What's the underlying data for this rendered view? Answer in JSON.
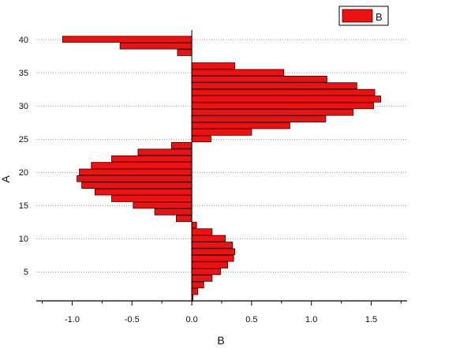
{
  "chart_data": {
    "type": "bar",
    "orientation": "horizontal",
    "xlabel": "B",
    "ylabel": "A",
    "xlim": [
      -1.3,
      1.8
    ],
    "ylim": [
      0.6,
      41.4
    ],
    "x_ticks": [
      -1.0,
      -0.5,
      0.0,
      0.5,
      1.0,
      1.5
    ],
    "x_tick_labels": [
      "-1.0",
      "-0.5",
      "0.0",
      "0.5",
      "1.0",
      "1.5"
    ],
    "y_ticks": [
      5,
      10,
      15,
      20,
      25,
      30,
      35,
      40
    ],
    "y_tick_labels": [
      "5",
      "10",
      "15",
      "20",
      "25",
      "30",
      "35",
      "40"
    ],
    "grid": "horizontal dotted at y ticks",
    "legend_position": "top-right",
    "series": [
      {
        "name": "B",
        "color": "#ee1111",
        "x": [
          1,
          2,
          3,
          4,
          5,
          6,
          7,
          8,
          9,
          10,
          11,
          12,
          13,
          14,
          15,
          16,
          17,
          18,
          19,
          20,
          21,
          22,
          23,
          24,
          25,
          26,
          27,
          28,
          29,
          30,
          31,
          32,
          33,
          34,
          35,
          36,
          37,
          38,
          39,
          40
        ],
        "values": [
          0.01,
          0.05,
          0.1,
          0.17,
          0.24,
          0.3,
          0.35,
          0.36,
          0.34,
          0.28,
          0.17,
          0.04,
          -0.13,
          -0.31,
          -0.49,
          -0.67,
          -0.81,
          -0.92,
          -0.96,
          -0.94,
          -0.84,
          -0.67,
          -0.45,
          -0.17,
          0.16,
          0.5,
          0.82,
          1.12,
          1.35,
          1.52,
          1.58,
          1.53,
          1.38,
          1.13,
          0.77,
          0.36,
          0.0,
          -0.12,
          -0.6,
          -1.08
        ]
      }
    ]
  }
}
